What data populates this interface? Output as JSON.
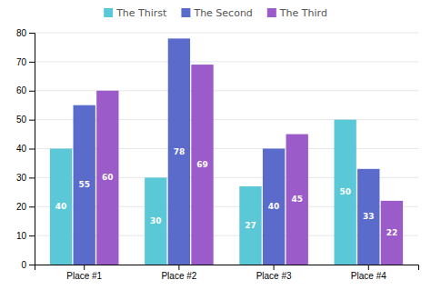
{
  "chart_data": {
    "type": "bar",
    "categories": [
      "Place #1",
      "Place #2",
      "Place #3",
      "Place #4"
    ],
    "series": [
      {
        "name": "The Thirst",
        "color": "#5BC8D8",
        "values": [
          40,
          30,
          27,
          50
        ]
      },
      {
        "name": "The Second",
        "color": "#5B6BCC",
        "values": [
          55,
          78,
          40,
          33
        ]
      },
      {
        "name": "The Third",
        "color": "#9B5BC8",
        "values": [
          60,
          69,
          45,
          22
        ]
      }
    ],
    "ylim": [
      0,
      80
    ],
    "yticks": [
      0,
      10,
      20,
      30,
      40,
      50,
      60,
      70,
      80
    ],
    "grid": true,
    "legend": "top",
    "data_labels": true
  }
}
